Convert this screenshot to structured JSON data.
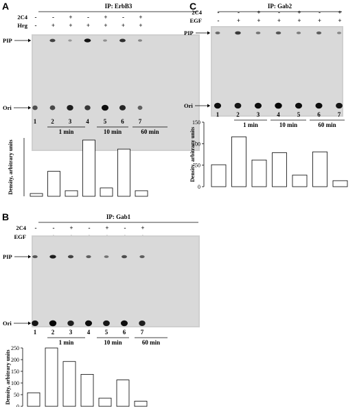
{
  "panels": [
    {
      "letter": "A",
      "ip": "IP: ErbB3",
      "rows": [
        {
          "label": "2C4",
          "signs": [
            "-",
            "-",
            "+",
            "-",
            "+",
            "-",
            "+"
          ]
        },
        {
          "label": "Hrg",
          "signs": [
            "-",
            "+",
            "+",
            "+",
            "+",
            "+",
            "+"
          ]
        }
      ],
      "markers": {
        "pip": "PIP",
        "ori": "Ori"
      },
      "lanes": [
        "1",
        "2",
        "3",
        "4",
        "5",
        "6",
        "7"
      ],
      "time_groups": [
        "1 min",
        "10 min",
        "60 min"
      ],
      "ylabel": "Density, arbitrary units",
      "spots": {
        "pip": [
          0,
          0.7,
          0.25,
          0.95,
          0.3,
          0.8,
          0.35
        ],
        "ori": [
          0.55,
          0.6,
          0.85,
          0.7,
          0.95,
          0.8,
          0.45
        ]
      },
      "chart_data": {
        "type": "bar",
        "categories": [
          "1",
          "2",
          "3",
          "4",
          "5",
          "6",
          "7"
        ],
        "values": [
          20,
          180,
          40,
          405,
          60,
          340,
          40
        ],
        "ylim": [
          0,
          420
        ],
        "yticks": [],
        "ylabel": "Density, arbitrary units"
      }
    },
    {
      "letter": "B",
      "ip": "IP: Gab1",
      "rows": [
        {
          "label": "2C4",
          "signs": [
            "-",
            "-",
            "+",
            "-",
            "+",
            "-",
            "+"
          ]
        },
        {
          "label": "EGF",
          "signs": [
            "-",
            "+",
            "+",
            "+",
            "+",
            "+",
            "+"
          ]
        }
      ],
      "markers": {
        "pip": "PIP",
        "ori": "Ori"
      },
      "lanes": [
        "1",
        "2",
        "3",
        "4",
        "5",
        "6",
        "7"
      ],
      "time_groups": [
        "1 min",
        "10 min",
        "60 min"
      ],
      "ylabel": "Density, arbitrary units",
      "spots": {
        "pip": [
          0.6,
          0.9,
          0.7,
          0.55,
          0.45,
          0.65,
          0.55
        ],
        "ori": [
          0.9,
          1.0,
          0.85,
          0.95,
          0.9,
          0.95,
          0.85
        ]
      },
      "chart_data": {
        "type": "bar",
        "categories": [
          "1",
          "2",
          "3",
          "4",
          "5",
          "6",
          "7"
        ],
        "values": [
          58,
          250,
          192,
          137,
          35,
          113,
          22
        ],
        "ylim": [
          0,
          250
        ],
        "yticks": [
          0,
          50,
          100,
          150,
          200,
          250
        ],
        "ylabel": "Density, arbitrary units"
      }
    },
    {
      "letter": "C",
      "ip": "IP: Gab2",
      "rows": [
        {
          "label": "2C4",
          "signs": [
            "-",
            "-",
            "+",
            "-",
            "+",
            "-",
            "+"
          ]
        },
        {
          "label": "EGF",
          "signs": [
            "-",
            "+",
            "+",
            "+",
            "+",
            "+",
            "+"
          ]
        }
      ],
      "markers": {
        "pip": "PIP",
        "ori": "Ori"
      },
      "lanes": [
        "1",
        "2",
        "3",
        "4",
        "5",
        "6",
        "7"
      ],
      "time_groups": [
        "1 min",
        "10 min",
        "60 min"
      ],
      "ylabel": "Density, arbitrary units",
      "spots": {
        "pip": [
          0.5,
          0.75,
          0.45,
          0.6,
          0.4,
          0.55,
          0.35
        ],
        "ori": [
          0.95,
          0.9,
          0.95,
          1.0,
          0.95,
          0.95,
          0.9
        ]
      },
      "chart_data": {
        "type": "bar",
        "categories": [
          "1",
          "2",
          "3",
          "4",
          "5",
          "6",
          "7"
        ],
        "values": [
          51,
          116,
          62,
          79,
          27,
          81,
          14
        ],
        "ylim": [
          0,
          150
        ],
        "yticks": [
          0,
          50,
          100,
          150
        ],
        "ylabel": "Density, arbitrary units"
      }
    }
  ]
}
